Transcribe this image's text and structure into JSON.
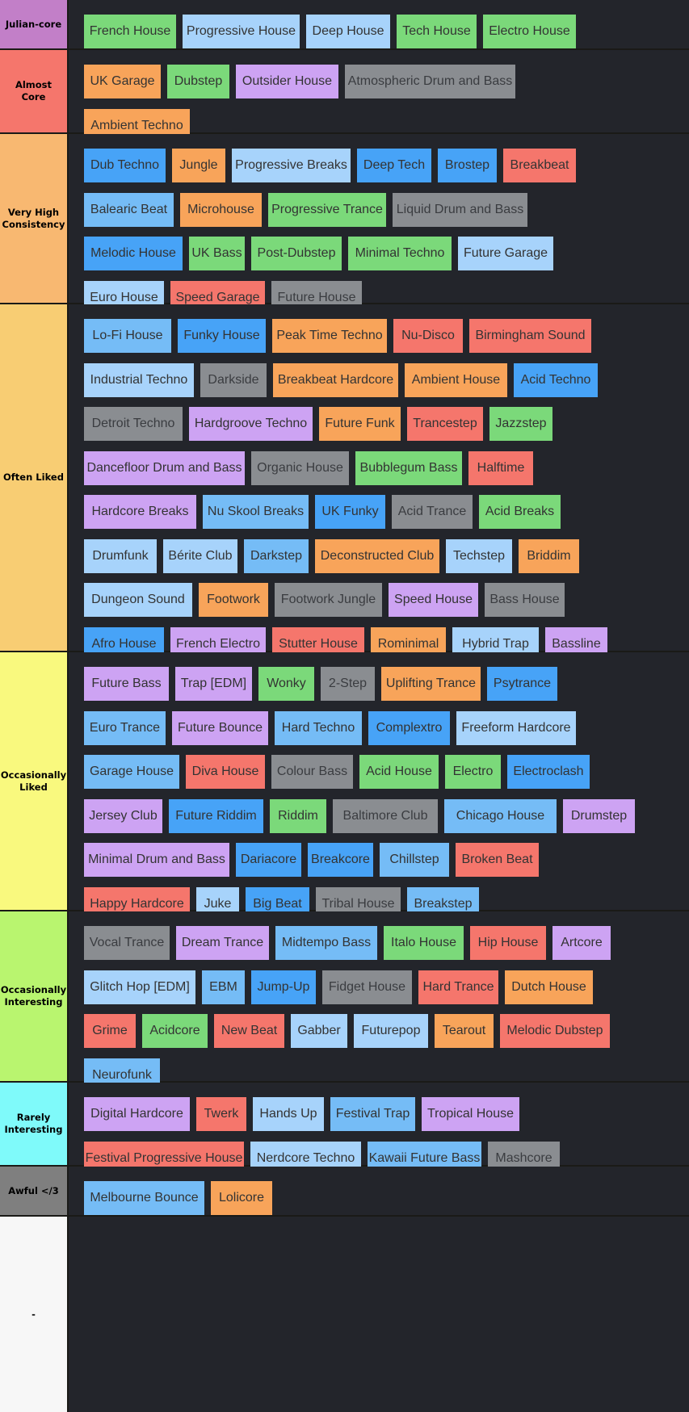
{
  "tiers": [
    {
      "label": "Julian-core",
      "color": "#c27fc8",
      "items": [
        {
          "text": "French House",
          "c": "green"
        },
        {
          "text": "Progressive House",
          "c": "lblue"
        },
        {
          "text": "Deep House",
          "c": "lblue"
        },
        {
          "text": "Tech House",
          "c": "green"
        },
        {
          "text": "Electro House",
          "c": "green"
        }
      ]
    },
    {
      "label": "Almost Core",
      "color": "#f5766c",
      "items": [
        {
          "text": "UK Garage",
          "c": "orange"
        },
        {
          "text": "Dubstep",
          "c": "green"
        },
        {
          "text": "Outsider House",
          "c": "purple"
        },
        {
          "text": "Atmospheric Drum and Bass",
          "c": "gray"
        },
        {
          "text": "Ambient Techno",
          "c": "orange"
        }
      ]
    },
    {
      "label": "Very High Consistency",
      "color": "#f8b871",
      "items": [
        {
          "text": "Dub Techno",
          "c": "blue"
        },
        {
          "text": "Jungle",
          "c": "orange"
        },
        {
          "text": "Progressive Breaks",
          "c": "lblue"
        },
        {
          "text": "Deep Tech",
          "c": "blue"
        },
        {
          "text": "Brostep",
          "c": "blue"
        },
        {
          "text": "Breakbeat",
          "c": "red"
        },
        {
          "text": "Balearic Beat",
          "c": "lblue2"
        },
        {
          "text": "Microhouse",
          "c": "orange"
        },
        {
          "text": "Progressive Trance",
          "c": "green"
        },
        {
          "text": "Liquid Drum and Bass",
          "c": "gray"
        },
        {
          "text": "Melodic House",
          "c": "blue"
        },
        {
          "text": "UK Bass",
          "c": "green"
        },
        {
          "text": "Post-Dubstep",
          "c": "green"
        },
        {
          "text": "Minimal Techno",
          "c": "green"
        },
        {
          "text": "Future Garage",
          "c": "lblue"
        },
        {
          "text": "Euro House",
          "c": "lblue"
        },
        {
          "text": "Speed Garage",
          "c": "red"
        },
        {
          "text": "Future House",
          "c": "gray"
        }
      ]
    },
    {
      "label": "Often Liked",
      "color": "#f8cd73",
      "items": [
        {
          "text": "Lo-Fi House",
          "c": "lblue2"
        },
        {
          "text": "Funky House",
          "c": "blue"
        },
        {
          "text": "Peak Time Techno",
          "c": "orange"
        },
        {
          "text": "Nu-Disco",
          "c": "red"
        },
        {
          "text": "Birmingham Sound",
          "c": "red"
        },
        {
          "text": "Industrial Techno",
          "c": "lblue"
        },
        {
          "text": "Darkside",
          "c": "gray"
        },
        {
          "text": "Breakbeat Hardcore",
          "c": "orange"
        },
        {
          "text": "Ambient House",
          "c": "orange"
        },
        {
          "text": "Acid Techno",
          "c": "blue"
        },
        {
          "text": "Detroit Techno",
          "c": "gray"
        },
        {
          "text": "Hardgroove Techno",
          "c": "purple"
        },
        {
          "text": "Future Funk",
          "c": "orange"
        },
        {
          "text": "Trancestep",
          "c": "red"
        },
        {
          "text": "Jazzstep",
          "c": "green"
        },
        {
          "text": "Dancefloor Drum and Bass",
          "c": "purple"
        },
        {
          "text": "Organic House",
          "c": "gray"
        },
        {
          "text": "Bubblegum Bass",
          "c": "green"
        },
        {
          "text": "Halftime",
          "c": "red"
        },
        {
          "text": "Hardcore Breaks",
          "c": "purple"
        },
        {
          "text": "Nu Skool Breaks",
          "c": "lblue2"
        },
        {
          "text": "UK Funky",
          "c": "blue"
        },
        {
          "text": "Acid Trance",
          "c": "gray"
        },
        {
          "text": "Acid Breaks",
          "c": "green"
        },
        {
          "text": "Drumfunk",
          "c": "lblue"
        },
        {
          "text": "Bérite Club",
          "c": "lblue"
        },
        {
          "text": "Darkstep",
          "c": "lblue2"
        },
        {
          "text": "Deconstructed Club",
          "c": "orange"
        },
        {
          "text": "Techstep",
          "c": "lblue"
        },
        {
          "text": "Briddim",
          "c": "orange"
        },
        {
          "text": "Dungeon Sound",
          "c": "lblue"
        },
        {
          "text": "Footwork",
          "c": "orange"
        },
        {
          "text": "Footwork Jungle",
          "c": "gray"
        },
        {
          "text": "Speed House",
          "c": "purple"
        },
        {
          "text": "Bass House",
          "c": "gray"
        },
        {
          "text": "Afro House",
          "c": "blue"
        },
        {
          "text": "French Electro",
          "c": "purple"
        },
        {
          "text": "Stutter House",
          "c": "red"
        },
        {
          "text": "Rominimal",
          "c": "orange"
        },
        {
          "text": "Hybrid Trap",
          "c": "lblue"
        },
        {
          "text": "Bassline",
          "c": "purple"
        }
      ]
    },
    {
      "label": "Occasionally Liked",
      "color": "#f9f97e",
      "items": [
        {
          "text": "Future Bass",
          "c": "purple"
        },
        {
          "text": "Trap [EDM]",
          "c": "purple"
        },
        {
          "text": "Wonky",
          "c": "green"
        },
        {
          "text": "2-Step",
          "c": "gray"
        },
        {
          "text": "Uplifting Trance",
          "c": "orange"
        },
        {
          "text": "Psytrance",
          "c": "blue"
        },
        {
          "text": "Euro Trance",
          "c": "lblue2"
        },
        {
          "text": "Future Bounce",
          "c": "purple"
        },
        {
          "text": "Hard Techno",
          "c": "lblue2"
        },
        {
          "text": "Complextro",
          "c": "blue"
        },
        {
          "text": "Freeform Hardcore",
          "c": "lblue"
        },
        {
          "text": "Garage House",
          "c": "lblue2"
        },
        {
          "text": "Diva House",
          "c": "red"
        },
        {
          "text": "Colour Bass",
          "c": "gray"
        },
        {
          "text": "Acid House",
          "c": "green"
        },
        {
          "text": "Electro",
          "c": "green"
        },
        {
          "text": "Electroclash",
          "c": "blue"
        },
        {
          "text": "Jersey Club",
          "c": "purple"
        },
        {
          "text": "Future Riddim",
          "c": "blue"
        },
        {
          "text": "Riddim",
          "c": "green"
        },
        {
          "text": "Baltimore Club",
          "c": "gray"
        },
        {
          "text": "Chicago House",
          "c": "lblue2"
        },
        {
          "text": "Drumstep",
          "c": "purple"
        },
        {
          "text": "Minimal Drum and Bass",
          "c": "purple"
        },
        {
          "text": "Dariacore",
          "c": "blue"
        },
        {
          "text": "Breakcore",
          "c": "blue"
        },
        {
          "text": "Chillstep",
          "c": "lblue2"
        },
        {
          "text": "Broken Beat",
          "c": "red"
        },
        {
          "text": "Happy Hardcore",
          "c": "red"
        },
        {
          "text": "Juke",
          "c": "lblue"
        },
        {
          "text": "Big Beat",
          "c": "blue"
        },
        {
          "text": "Tribal House",
          "c": "gray"
        },
        {
          "text": "Breakstep",
          "c": "lblue2"
        }
      ]
    },
    {
      "label": "Occasionally Interesting",
      "color": "#b9f56f",
      "items": [
        {
          "text": "Vocal Trance",
          "c": "gray"
        },
        {
          "text": "Dream Trance",
          "c": "purple"
        },
        {
          "text": "Midtempo Bass",
          "c": "lblue2"
        },
        {
          "text": "Italo House",
          "c": "green"
        },
        {
          "text": "Hip House",
          "c": "red"
        },
        {
          "text": "Artcore",
          "c": "purple"
        },
        {
          "text": "Glitch Hop [EDM]",
          "c": "lblue"
        },
        {
          "text": "EBM",
          "c": "lblue2"
        },
        {
          "text": "Jump-Up",
          "c": "blue"
        },
        {
          "text": "Fidget House",
          "c": "gray"
        },
        {
          "text": "Hard Trance",
          "c": "red"
        },
        {
          "text": "Dutch House",
          "c": "orange"
        },
        {
          "text": "Grime",
          "c": "red"
        },
        {
          "text": "Acidcore",
          "c": "green"
        },
        {
          "text": "New Beat",
          "c": "red"
        },
        {
          "text": "Gabber",
          "c": "lblue"
        },
        {
          "text": "Futurepop",
          "c": "lblue"
        },
        {
          "text": "Tearout",
          "c": "orange"
        },
        {
          "text": "Melodic Dubstep",
          "c": "red"
        },
        {
          "text": "Neurofunk",
          "c": "lblue2"
        }
      ]
    },
    {
      "label": "Rarely Interesting",
      "color": "#7ffafa",
      "items": [
        {
          "text": "Digital Hardcore",
          "c": "purple"
        },
        {
          "text": "Twerk",
          "c": "red"
        },
        {
          "text": "Hands Up",
          "c": "lblue"
        },
        {
          "text": "Festival Trap",
          "c": "lblue2"
        },
        {
          "text": "Tropical House",
          "c": "purple"
        },
        {
          "text": "Festival Progressive House",
          "c": "red"
        },
        {
          "text": "Nerdcore Techno",
          "c": "lblue"
        },
        {
          "text": "Kawaii Future Bass",
          "c": "lblue2"
        },
        {
          "text": "Mashcore",
          "c": "gray"
        }
      ]
    },
    {
      "label": "Awful </3",
      "color": "#7f7f7f",
      "items": [
        {
          "text": "Melbourne Bounce",
          "c": "lblue2"
        },
        {
          "text": "Lolicore",
          "c": "orange"
        }
      ]
    },
    {
      "label": "-",
      "color": "#f7f7f7",
      "items": []
    }
  ]
}
